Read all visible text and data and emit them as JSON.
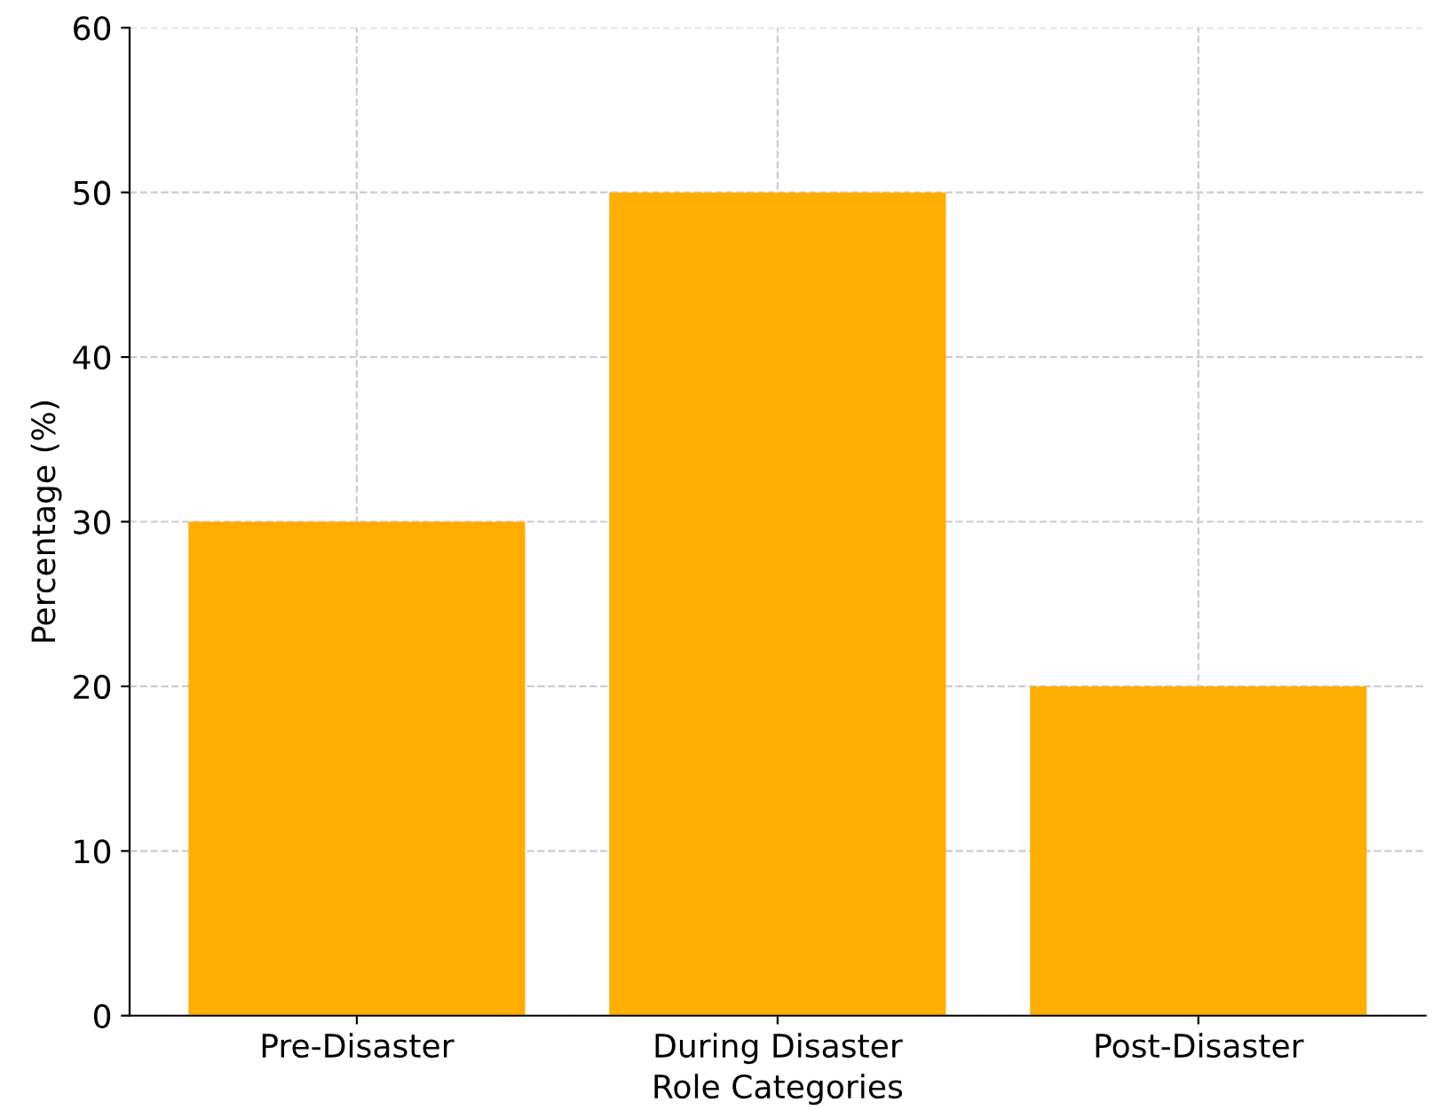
{
  "chart_data": {
    "type": "bar",
    "xlabel": "Role Categories",
    "ylabel": "Percentage (%)",
    "categories": [
      "Pre-Disaster",
      "During Disaster",
      "Post-Disaster"
    ],
    "values": [
      30,
      50,
      20
    ],
    "color": "#ffad00",
    "ylim": [
      0,
      60
    ],
    "yticks": [
      0,
      10,
      20,
      30,
      40,
      50,
      60
    ],
    "grid": true
  }
}
